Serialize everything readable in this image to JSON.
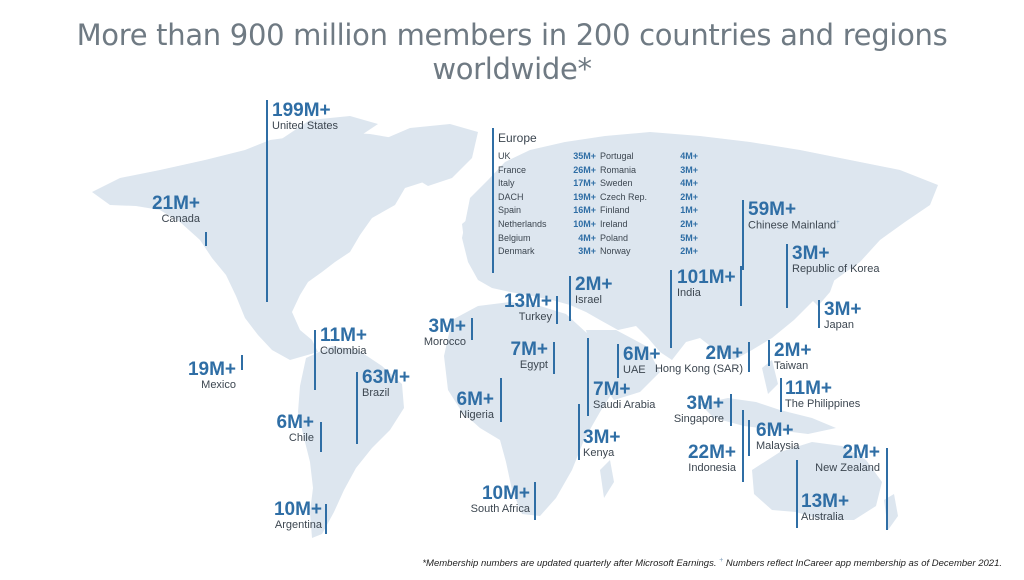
{
  "title": "More than 900 million members in 200 countries and regions worldwide*",
  "colors": {
    "land": "#dde6ef",
    "accent": "#2f6ea5",
    "title": "#6f7a83",
    "label": "#3c4650"
  },
  "callouts": {
    "united_states": {
      "num": "199M+",
      "name": "United States"
    },
    "canada": {
      "num": "21M+",
      "name": "Canada"
    },
    "mexico": {
      "num": "19M+",
      "name": "Mexico"
    },
    "colombia": {
      "num": "11M+",
      "name": "Colombia"
    },
    "brazil": {
      "num": "63M+",
      "name": "Brazil"
    },
    "chile": {
      "num": "6M+",
      "name": "Chile"
    },
    "argentina": {
      "num": "10M+",
      "name": "Argentina"
    },
    "morocco": {
      "num": "3M+",
      "name": "Morocco"
    },
    "nigeria": {
      "num": "6M+",
      "name": "Nigeria"
    },
    "egypt": {
      "num": "7M+",
      "name": "Egypt"
    },
    "turkey": {
      "num": "13M+",
      "name": "Turkey"
    },
    "israel": {
      "num": "2M+",
      "name": "Israel"
    },
    "uae": {
      "num": "6M+",
      "name": "UAE"
    },
    "saudi_arabia": {
      "num": "7M+",
      "name": "Saudi Arabia"
    },
    "kenya": {
      "num": "3M+",
      "name": "Kenya"
    },
    "south_africa": {
      "num": "10M+",
      "name": "South Africa"
    },
    "india": {
      "num": "101M+",
      "name": "India"
    },
    "chinese_mainland": {
      "num": "59M+",
      "name": "Chinese Mainland"
    },
    "korea": {
      "num": "3M+",
      "name": "Republic of Korea"
    },
    "japan": {
      "num": "3M+",
      "name": "Japan"
    },
    "hong_kong": {
      "num": "2M+",
      "name": "Hong Kong (SAR)"
    },
    "taiwan": {
      "num": "2M+",
      "name": "Taiwan"
    },
    "philippines": {
      "num": "11M+",
      "name": "The Philippines"
    },
    "singapore": {
      "num": "3M+",
      "name": "Singapore"
    },
    "malaysia": {
      "num": "6M+",
      "name": "Malaysia"
    },
    "indonesia": {
      "num": "22M+",
      "name": "Indonesia"
    },
    "new_zealand": {
      "num": "2M+",
      "name": "New Zealand"
    },
    "australia": {
      "num": "13M+",
      "name": "Australia"
    }
  },
  "europe": {
    "title": "Europe",
    "left": [
      {
        "name": "UK",
        "value": "35M+"
      },
      {
        "name": "France",
        "value": "26M+"
      },
      {
        "name": "Italy",
        "value": "17M+"
      },
      {
        "name": "DACH",
        "value": "19M+"
      },
      {
        "name": "Spain",
        "value": "16M+"
      },
      {
        "name": "Netherlands",
        "value": "10M+"
      },
      {
        "name": "Belgium",
        "value": "4M+"
      },
      {
        "name": "Denmark",
        "value": "3M+"
      }
    ],
    "right": [
      {
        "name": "Portugal",
        "value": "4M+"
      },
      {
        "name": "Romania",
        "value": "3M+"
      },
      {
        "name": "Sweden",
        "value": "4M+"
      },
      {
        "name": "Czech Rep.",
        "value": "2M+"
      },
      {
        "name": "Finland",
        "value": "1M+"
      },
      {
        "name": "Ireland",
        "value": "2M+"
      },
      {
        "name": "Poland",
        "value": "5M+"
      },
      {
        "name": "Norway",
        "value": "2M+"
      }
    ]
  },
  "footnote": {
    "main": "*Membership numbers are updated quarterly after Microsoft Earnings. ",
    "dagger": "+",
    "tail": " Numbers reflect InCareer app membership as of December 2021."
  }
}
